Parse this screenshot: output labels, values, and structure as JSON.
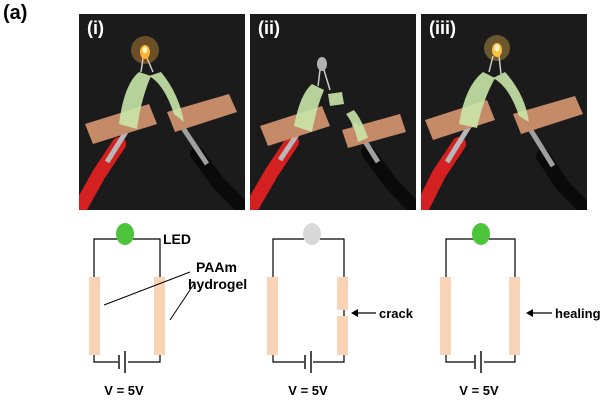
{
  "figure": {
    "panel_label": "(a)",
    "photos": [
      {
        "label": "(i)",
        "led_state": "lit"
      },
      {
        "label": "(ii)",
        "led_state": "off"
      },
      {
        "label": "(iii)",
        "led_state": "lit"
      }
    ],
    "circuits": [
      {
        "led_color": "#4cc43a",
        "gel_state": "intact",
        "voltage": "V = 5V"
      },
      {
        "led_color": "#d9d9d9",
        "gel_state": "crack",
        "voltage": "V = 5V"
      },
      {
        "led_color": "#4cc43a",
        "gel_state": "healed",
        "voltage": "V = 5V"
      }
    ],
    "labels": {
      "led": "LED",
      "paam_line1": "PAAm",
      "paam_line2": "hydrogel",
      "crack": "crack",
      "healing": "healing"
    },
    "colors": {
      "hydrogel": "#f8d3b5",
      "led_on": "#4cc43a",
      "led_off": "#d9d9d9",
      "photo_bg": "#1b1b1b",
      "copper_tape": "#c58b68",
      "red_clip": "#d42020"
    }
  }
}
